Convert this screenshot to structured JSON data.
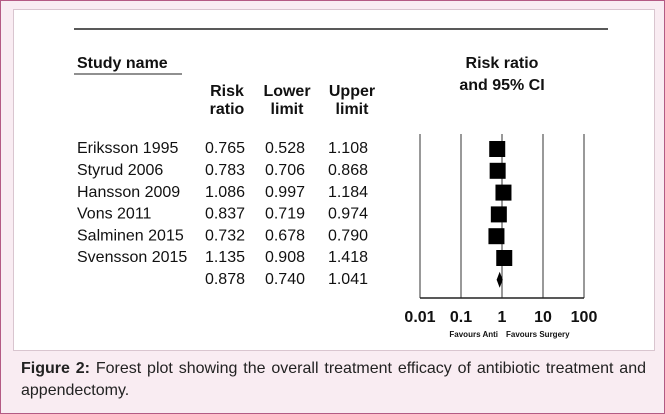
{
  "chart_data": {
    "type": "forest",
    "headers": {
      "study": "Study name",
      "ratio": [
        "Risk",
        "ratio"
      ],
      "lower": [
        "Lower",
        "limit"
      ],
      "upper": [
        "Upper",
        "limit"
      ],
      "plot": [
        "Risk ratio",
        "and 95% CI"
      ]
    },
    "categories": [
      "Eriksson 1995",
      "Styrud 2006",
      "Hansson 2009",
      "Vons 2011",
      "Salminen 2015",
      "Svensson 2015",
      null
    ],
    "values": [
      0.765,
      0.783,
      1.086,
      0.837,
      0.732,
      1.135,
      0.878
    ],
    "value_labels": [
      "0.765",
      "0.783",
      "1.086",
      "0.837",
      "0.732",
      "1.135",
      "0.878"
    ],
    "lower": [
      0.528,
      0.706,
      0.997,
      0.719,
      0.678,
      0.908,
      0.74
    ],
    "lower_labels": [
      "0.528",
      "0.706",
      "0.997",
      "0.719",
      "0.678",
      "0.908",
      "0.740"
    ],
    "upper": [
      1.108,
      0.868,
      1.184,
      0.974,
      0.79,
      1.418,
      1.041
    ],
    "upper_labels": [
      "1.108",
      "0.868",
      "1.184",
      "0.974",
      "0.790",
      "1.418",
      "1.041"
    ],
    "xlim": [
      0.01,
      100
    ],
    "xticks": [
      0.01,
      0.1,
      1,
      10,
      100
    ],
    "log_x": true,
    "color": "#000000",
    "favours": [
      "Favours Anti",
      "Favours Surgery"
    ],
    "caption": {
      "label": "Figure 2:",
      "text": " Forest plot showing the overall treatment efficacy of antibiotic treatment and appendectomy."
    }
  }
}
